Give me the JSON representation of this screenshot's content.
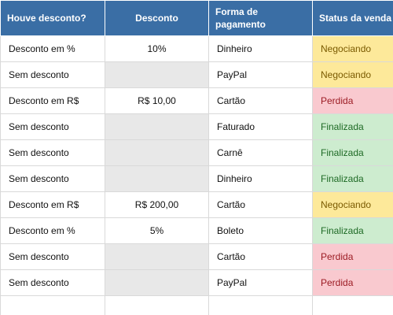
{
  "headers": [
    "Houve desconto?",
    "Desconto",
    "Forma de pagamento",
    "Status da venda"
  ],
  "rows": [
    {
      "tipo": "Desconto em %",
      "desconto": "10%",
      "pagamento": "Dinheiro",
      "status": "Negociando"
    },
    {
      "tipo": "Sem desconto",
      "desconto": "",
      "pagamento": "PayPal",
      "status": "Negociando"
    },
    {
      "tipo": "Desconto em R$",
      "desconto": "R$ 10,00",
      "pagamento": "Cartão",
      "status": "Perdida"
    },
    {
      "tipo": "Sem desconto",
      "desconto": "",
      "pagamento": "Faturado",
      "status": "Finalizada"
    },
    {
      "tipo": "Sem desconto",
      "desconto": "",
      "pagamento": "Carnê",
      "status": "Finalizada"
    },
    {
      "tipo": "Sem desconto",
      "desconto": "",
      "pagamento": "Dinheiro",
      "status": "Finalizada"
    },
    {
      "tipo": "Desconto em R$",
      "desconto": "R$ 200,00",
      "pagamento": "Cartão",
      "status": "Negociando"
    },
    {
      "tipo": "Desconto em %",
      "desconto": "5%",
      "pagamento": "Boleto",
      "status": "Finalizada"
    },
    {
      "tipo": "Sem desconto",
      "desconto": "",
      "pagamento": "Cartão",
      "status": "Perdida"
    },
    {
      "tipo": "Sem desconto",
      "desconto": "",
      "pagamento": "PayPal",
      "status": "Perdida"
    }
  ],
  "colors": {
    "header_bg": "#3a6ea5",
    "status_negociando": "#fde99a",
    "status_perdida": "#f9c9cf",
    "status_finalizada": "#cdeccf",
    "no_discount_cell": "#e8e8e8"
  }
}
